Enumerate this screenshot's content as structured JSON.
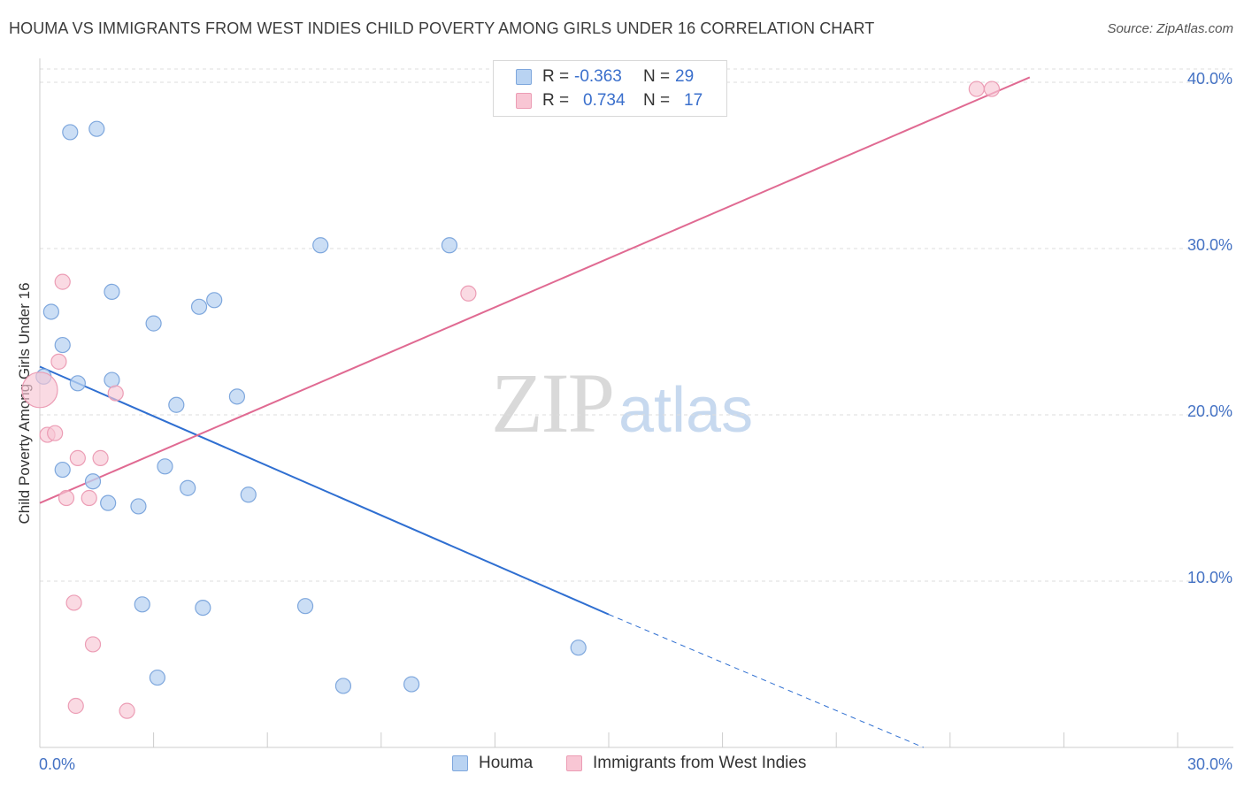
{
  "header": {
    "title": "HOUMA VS IMMIGRANTS FROM WEST INDIES CHILD POVERTY AMONG GIRLS UNDER 16 CORRELATION CHART",
    "source": "Source: ZipAtlas.com"
  },
  "watermark": {
    "zip": "ZIP",
    "atlas": "atlas"
  },
  "legend": {
    "rows": [
      {
        "r_label": "R =",
        "r_value": "-0.363",
        "n_label": "N =",
        "n_value": "29"
      },
      {
        "r_label": "R =",
        "r_value": "0.734",
        "n_label": "N =",
        "n_value": "17"
      }
    ],
    "bottom": [
      {
        "label": "Houma"
      },
      {
        "label": "Immigrants from West Indies"
      }
    ]
  },
  "colors": {
    "houma_fill": "#b9d3f2",
    "houma_stroke": "#7ea7dd",
    "houma_line": "#2f6fd1",
    "wi_fill": "#f8c6d4",
    "wi_stroke": "#ec9db5",
    "wi_line": "#e06a92",
    "grid": "#dddddd",
    "axis_text": "#4472c4"
  },
  "chart_data": {
    "type": "scatter",
    "title": "HOUMA VS IMMIGRANTS FROM WEST INDIES CHILD POVERTY AMONG GIRLS UNDER 16 CORRELATION CHART",
    "xlabel": "",
    "ylabel": "Child Poverty Among Girls Under 16",
    "xlim": [
      0,
      30
    ],
    "ylim": [
      0,
      40.8
    ],
    "x_tick_labels": [
      "0.0%",
      "30.0%"
    ],
    "y_ticks": [
      10,
      20,
      30,
      40
    ],
    "y_tick_labels": [
      "10.0%",
      "20.0%",
      "30.0%",
      "40.0%"
    ],
    "grid": true,
    "series": [
      {
        "name": "Houma",
        "points": [
          [
            0.1,
            22.3
          ],
          [
            0.3,
            26.2
          ],
          [
            0.6,
            24.2
          ],
          [
            0.8,
            37.0
          ],
          [
            1.0,
            21.9
          ],
          [
            1.5,
            37.2
          ],
          [
            1.9,
            22.1
          ],
          [
            1.9,
            27.4
          ],
          [
            3.0,
            25.5
          ],
          [
            4.2,
            26.5
          ],
          [
            4.6,
            26.9
          ],
          [
            5.2,
            21.1
          ],
          [
            7.4,
            30.2
          ],
          [
            10.8,
            30.2
          ],
          [
            0.6,
            16.7
          ],
          [
            1.4,
            16.0
          ],
          [
            1.8,
            14.7
          ],
          [
            2.6,
            14.5
          ],
          [
            3.3,
            16.9
          ],
          [
            3.6,
            20.6
          ],
          [
            3.9,
            15.6
          ],
          [
            5.5,
            15.2
          ],
          [
            2.7,
            8.6
          ],
          [
            4.3,
            8.4
          ],
          [
            7.0,
            8.5
          ],
          [
            3.1,
            4.2
          ],
          [
            8.0,
            3.7
          ],
          [
            9.8,
            3.8
          ],
          [
            14.2,
            6.0
          ]
        ],
        "trend": {
          "x0": 0,
          "y0": 22.9,
          "x1": 15,
          "y1": 8.0,
          "dash_to_x": 23.3,
          "dash_to_y": 0.0
        }
      },
      {
        "name": "Immigrants from West Indies",
        "points": [
          [
            0.0,
            21.5
          ],
          [
            0.2,
            18.8
          ],
          [
            0.4,
            18.9
          ],
          [
            0.5,
            23.2
          ],
          [
            0.6,
            28.0
          ],
          [
            0.7,
            15.0
          ],
          [
            1.0,
            17.4
          ],
          [
            1.3,
            15.0
          ],
          [
            1.6,
            17.4
          ],
          [
            2.0,
            21.3
          ],
          [
            0.9,
            8.7
          ],
          [
            1.4,
            6.2
          ],
          [
            0.95,
            2.5
          ],
          [
            2.3,
            2.2
          ],
          [
            11.3,
            27.3
          ],
          [
            24.7,
            39.6
          ],
          [
            25.1,
            39.6
          ]
        ],
        "trend": {
          "x0": 0,
          "y0": 14.7,
          "x1": 26.1,
          "y1": 40.3
        }
      }
    ]
  }
}
